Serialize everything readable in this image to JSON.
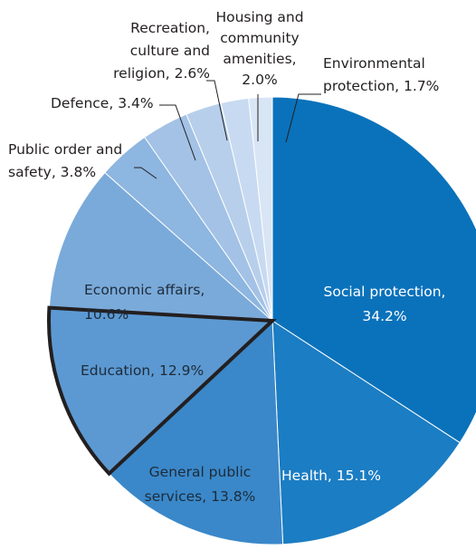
{
  "chart_data": {
    "type": "pie",
    "title": "",
    "start": "top, clockwise",
    "highlighted_slice": "Education",
    "slices": [
      {
        "name": "Social protection",
        "value": 34.2,
        "label_lines": [
          "Social protection,",
          "34.2%"
        ],
        "color": "#0a72bb"
      },
      {
        "name": "Health",
        "value": 15.1,
        "label_lines": [
          "Health, 15.1%"
        ],
        "color": "#1b7dc3"
      },
      {
        "name": "General public services",
        "value": 13.8,
        "label_lines": [
          "General public",
          "services, 13.8%"
        ],
        "color": "#3a88c9"
      },
      {
        "name": "Education",
        "value": 12.9,
        "label_lines": [
          "Education, 12.9%"
        ],
        "color": "#5c99d2"
      },
      {
        "name": "Economic affairs",
        "value": 10.6,
        "label_lines": [
          "Economic affairs,",
          "10.6%"
        ],
        "color": "#7aaada"
      },
      {
        "name": "Public order and safety",
        "value": 3.8,
        "label_lines": [
          "Public order and",
          "safety, 3.8%"
        ],
        "color": "#8db6e0"
      },
      {
        "name": "Defence",
        "value": 3.4,
        "label_lines": [
          "Defence, 3.4%"
        ],
        "color": "#a3c2e6"
      },
      {
        "name": "Recreation, culture and religion",
        "value": 2.6,
        "label_lines": [
          "Recreation,",
          "culture and",
          "religion, 2.6%"
        ],
        "color": "#b7cfeb"
      },
      {
        "name": "Housing and community amenities",
        "value": 2.0,
        "label_lines": [
          "Housing and",
          "community",
          "amenities,",
          "2.0%"
        ],
        "color": "#c8daf1"
      },
      {
        "name": "Environmental protection",
        "value": 1.7,
        "label_lines": [
          "Environmental",
          "protection, 1.7%"
        ],
        "color": "#d8e5f5"
      }
    ]
  }
}
